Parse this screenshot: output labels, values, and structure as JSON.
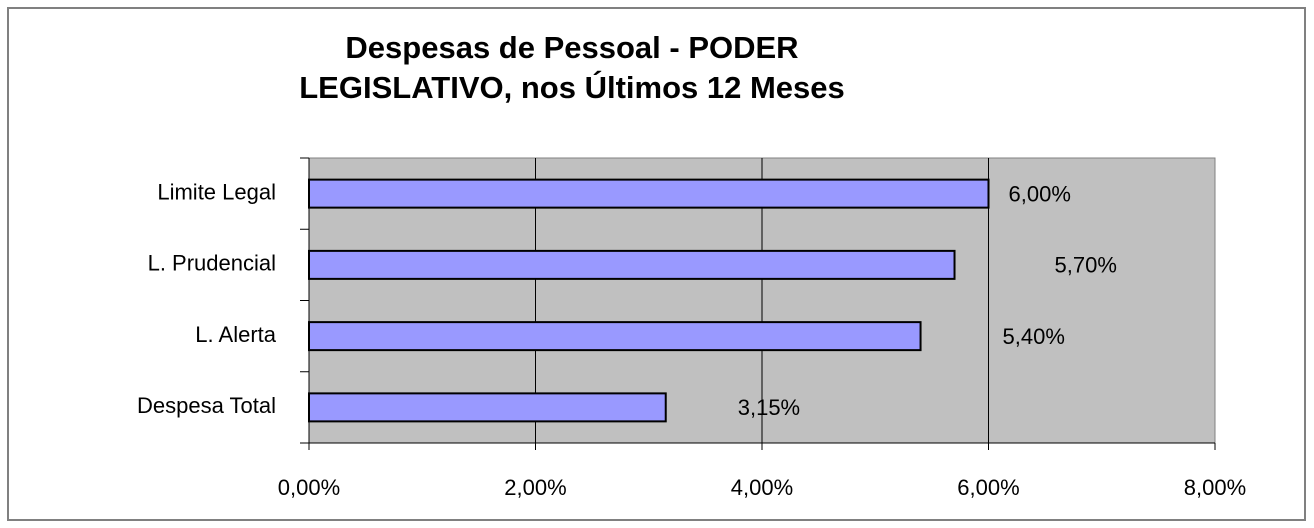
{
  "chart_data": {
    "type": "bar",
    "orientation": "horizontal",
    "title": [
      "Despesas de Pessoal - PODER",
      "LEGISLATIVO, nos Últimos 12 Meses"
    ],
    "categories": [
      "Limite Legal",
      "L. Prudencial",
      "L. Alerta",
      "Despesa Total"
    ],
    "values": [
      6,
      5.7,
      5.4,
      3.15
    ],
    "value_labels": [
      "6,00%",
      "5,70%",
      "5,40%",
      "3,15%"
    ],
    "color": "#9999ff",
    "xlim": [
      0,
      8
    ],
    "xticks": [
      {
        "value": 0,
        "label": "0,00%"
      },
      {
        "value": 2,
        "label": "2,00%"
      },
      {
        "value": 4,
        "label": "4,00%"
      },
      {
        "value": 6,
        "label": "6,00%"
      },
      {
        "value": 8,
        "label": "8,00%"
      }
    ],
    "grid": true
  }
}
